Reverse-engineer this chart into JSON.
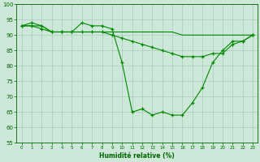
{
  "xlabel": "Humidité relative (%)",
  "background_color": "#cde8d8",
  "grid_color": "#aaccbb",
  "line_color": "#008800",
  "xlim": [
    -0.5,
    23.5
  ],
  "ylim": [
    55,
    100
  ],
  "yticks": [
    55,
    60,
    65,
    70,
    75,
    80,
    85,
    90,
    95,
    100
  ],
  "xticks": [
    0,
    1,
    2,
    3,
    4,
    5,
    6,
    7,
    8,
    9,
    10,
    11,
    12,
    13,
    14,
    15,
    16,
    17,
    18,
    19,
    20,
    21,
    22,
    23
  ],
  "line1_x": [
    0,
    1,
    2,
    3,
    4,
    5,
    6,
    7,
    8,
    9,
    10,
    11,
    12,
    13,
    14,
    15,
    16,
    17,
    18,
    19,
    20,
    21,
    22,
    23
  ],
  "line1_y": [
    93,
    94,
    93,
    91,
    91,
    91,
    94,
    93,
    93,
    92,
    81,
    65,
    66,
    64,
    65,
    64,
    64,
    68,
    73,
    81,
    85,
    88,
    88,
    90
  ],
  "line2_x": [
    0,
    1,
    2,
    3,
    4,
    5,
    6,
    7,
    8,
    9,
    10,
    11,
    12,
    13,
    14,
    15,
    16,
    17,
    18,
    19,
    20,
    21,
    22,
    23
  ],
  "line2_y": [
    93,
    93,
    93,
    91,
    91,
    91,
    91,
    91,
    91,
    91,
    91,
    91,
    91,
    91,
    91,
    91,
    90,
    90,
    90,
    90,
    90,
    90,
    90,
    90
  ],
  "line3_x": [
    0,
    1,
    2,
    3,
    4,
    5,
    6,
    7,
    8,
    9,
    10,
    11,
    12,
    13,
    14,
    15,
    16,
    17,
    18,
    19,
    20,
    21,
    22,
    23
  ],
  "line3_y": [
    93,
    93,
    92,
    91,
    91,
    91,
    91,
    91,
    91,
    90,
    89,
    88,
    87,
    86,
    85,
    84,
    83,
    83,
    83,
    84,
    84,
    87,
    88,
    90
  ]
}
